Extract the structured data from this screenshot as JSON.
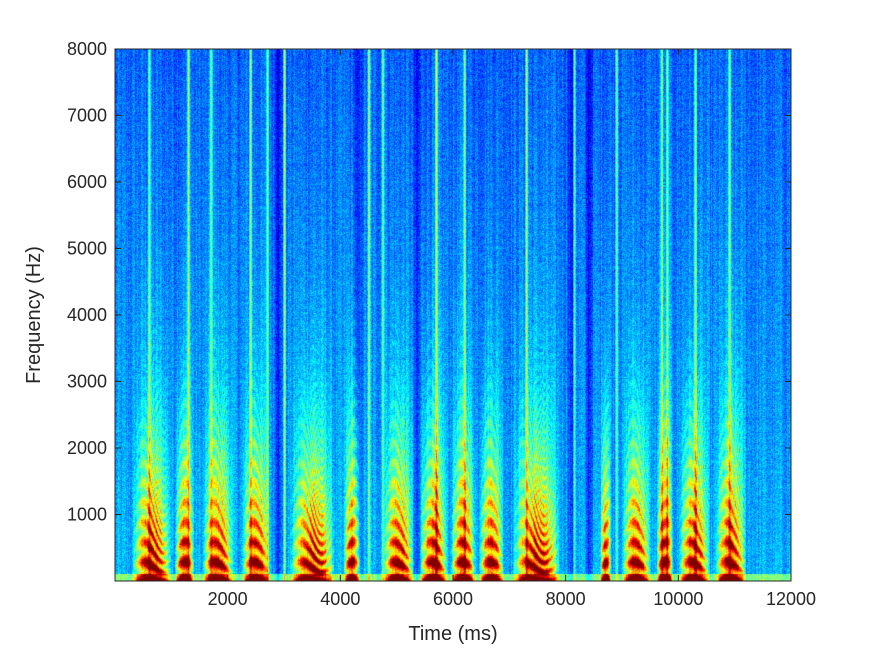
{
  "chart_data": {
    "type": "heatmap",
    "title": "",
    "xlabel": "Time (ms)",
    "ylabel": "Frequency (Hz)",
    "xlim": [
      0,
      12000
    ],
    "ylim": [
      0,
      8000
    ],
    "xticks": [
      2000,
      4000,
      6000,
      8000,
      10000,
      12000
    ],
    "yticks": [
      1000,
      2000,
      3000,
      4000,
      5000,
      6000,
      7000,
      8000
    ],
    "colormap": "jet",
    "colors": {
      "low": "#0a2fa8",
      "mid": "#2ad4d0",
      "high": "#d90e0e"
    },
    "voiced_segments_ms": [
      [
        300,
        1000
      ],
      [
        1050,
        1400
      ],
      [
        1550,
        2100
      ],
      [
        2250,
        2750
      ],
      [
        3100,
        3900
      ],
      [
        4050,
        4350
      ],
      [
        4750,
        5300
      ],
      [
        5400,
        5900
      ],
      [
        5950,
        6400
      ],
      [
        6450,
        6900
      ],
      [
        7050,
        7900
      ],
      [
        8600,
        8800
      ],
      [
        9000,
        9500
      ],
      [
        9600,
        9900
      ],
      [
        10000,
        10550
      ],
      [
        10650,
        11200
      ]
    ],
    "bright_columns_ms": [
      600,
      1300,
      1700,
      2400,
      2700,
      3000,
      4500,
      4750,
      5700,
      6200,
      7300,
      8150,
      8900,
      9700,
      9800,
      10300,
      10900
    ],
    "dark_gaps_ms": [
      2900,
      4300,
      5350,
      8100,
      8400
    ]
  }
}
